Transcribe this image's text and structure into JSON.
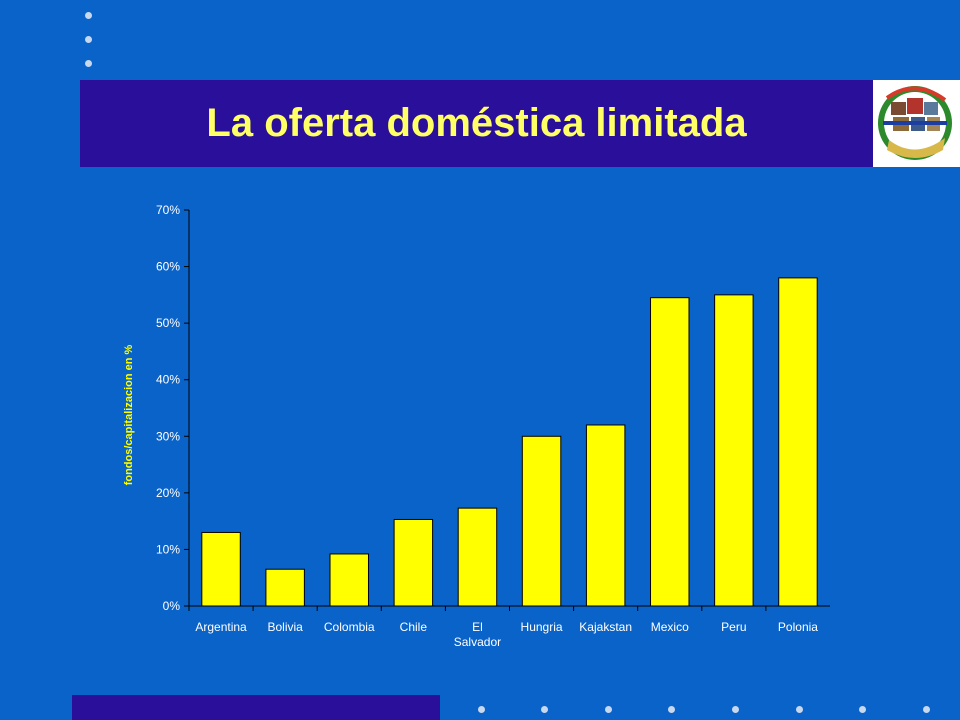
{
  "slide": {
    "title": "La oferta doméstica limitada",
    "colors": {
      "background": "#0a63c9",
      "bar_band": "#2a0f9a",
      "title_text": "#ffff66",
      "bar_fill": "#ffff00",
      "axis_text": "#ffffff"
    },
    "logo_icon": "globe-collage-logo"
  },
  "chart_data": {
    "type": "bar",
    "categories": [
      "Argentina",
      "Bolivia",
      "Colombia",
      "Chile",
      "El Salvador",
      "Hungria",
      "Kajakstan",
      "Mexico",
      "Peru",
      "Polonia"
    ],
    "category_label_lines": [
      [
        "Argentina"
      ],
      [
        "Bolivia"
      ],
      [
        "Colombia"
      ],
      [
        "Chile"
      ],
      [
        "El",
        "Salvador"
      ],
      [
        "Hungria"
      ],
      [
        "Kajakstan"
      ],
      [
        "Mexico"
      ],
      [
        "Peru"
      ],
      [
        "Polonia"
      ]
    ],
    "values": [
      13,
      6.5,
      9.2,
      15.3,
      17.3,
      30,
      32,
      54.5,
      55,
      58
    ],
    "ylabel": "fondos/capitalizacion en %",
    "xlabel": "",
    "ylim": [
      0,
      70
    ],
    "yticks": [
      0,
      10,
      20,
      30,
      40,
      50,
      60,
      70
    ],
    "ytick_labels": [
      "0%",
      "10%",
      "20%",
      "30%",
      "40%",
      "50%",
      "60%",
      "70%"
    ],
    "grid": false,
    "legend": "none"
  }
}
